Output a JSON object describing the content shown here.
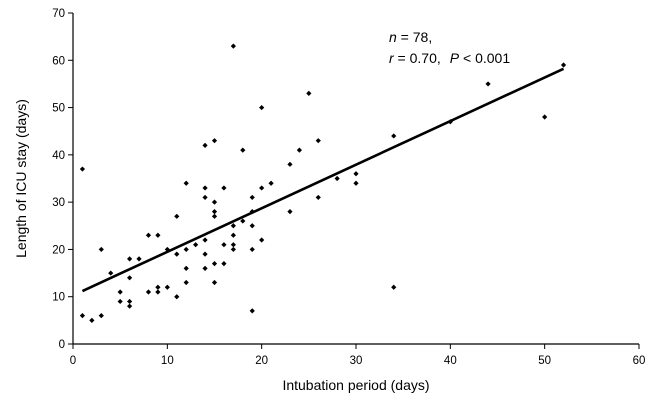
{
  "chart_data": {
    "type": "scatter",
    "title": "",
    "xlabel": "Intubation period (days)",
    "ylabel": "Length of ICU stay (days)",
    "xlim": [
      0,
      60
    ],
    "ylim": [
      0,
      70
    ],
    "xticks": [
      "0",
      "10",
      "20",
      "30",
      "40",
      "50",
      "60"
    ],
    "yticks": [
      "0",
      "10",
      "20",
      "30",
      "40",
      "50",
      "60",
      "70"
    ],
    "grid": false,
    "marker": "diamond",
    "color": "#000000",
    "points": [
      [
        1,
        37
      ],
      [
        1,
        6
      ],
      [
        2,
        5
      ],
      [
        3,
        20
      ],
      [
        3,
        6
      ],
      [
        4,
        15
      ],
      [
        5,
        11
      ],
      [
        5,
        9
      ],
      [
        6,
        18
      ],
      [
        6,
        14
      ],
      [
        6,
        9
      ],
      [
        6,
        8
      ],
      [
        7,
        18
      ],
      [
        8,
        23
      ],
      [
        8,
        11
      ],
      [
        9,
        23
      ],
      [
        9,
        12
      ],
      [
        9,
        11
      ],
      [
        10,
        20
      ],
      [
        10,
        12
      ],
      [
        11,
        27
      ],
      [
        11,
        19
      ],
      [
        11,
        10
      ],
      [
        12,
        34
      ],
      [
        12,
        20
      ],
      [
        12,
        16
      ],
      [
        12,
        13
      ],
      [
        13,
        21
      ],
      [
        14,
        42
      ],
      [
        14,
        33
      ],
      [
        14,
        31
      ],
      [
        14,
        22
      ],
      [
        14,
        19
      ],
      [
        14,
        16
      ],
      [
        15,
        43
      ],
      [
        15,
        30
      ],
      [
        15,
        28
      ],
      [
        15,
        27
      ],
      [
        15,
        17
      ],
      [
        15,
        13
      ],
      [
        16,
        33
      ],
      [
        16,
        21
      ],
      [
        16,
        17
      ],
      [
        17,
        63
      ],
      [
        17,
        25
      ],
      [
        17,
        23
      ],
      [
        17,
        21
      ],
      [
        17,
        20
      ],
      [
        18,
        41
      ],
      [
        18,
        26
      ],
      [
        19,
        31
      ],
      [
        19,
        28
      ],
      [
        19,
        25
      ],
      [
        19,
        20
      ],
      [
        19,
        7
      ],
      [
        20,
        50
      ],
      [
        20,
        33
      ],
      [
        20,
        22
      ],
      [
        21,
        34
      ],
      [
        23,
        38
      ],
      [
        23,
        28
      ],
      [
        24,
        41
      ],
      [
        25,
        53
      ],
      [
        26,
        43
      ],
      [
        26,
        31
      ],
      [
        28,
        35
      ],
      [
        30,
        36
      ],
      [
        30,
        34
      ],
      [
        34,
        44
      ],
      [
        34,
        12
      ],
      [
        40,
        47
      ],
      [
        44,
        55
      ],
      [
        50,
        48
      ],
      [
        52,
        59
      ]
    ],
    "regression": {
      "x": [
        1,
        52
      ],
      "y": [
        11.2,
        58.2
      ]
    },
    "annotations": {
      "n_label": "n",
      "n_value": " = 78,",
      "r_label": "r",
      "r_value": " = 0.70,",
      "p_label": "P",
      "p_value": " < 0.001"
    }
  }
}
